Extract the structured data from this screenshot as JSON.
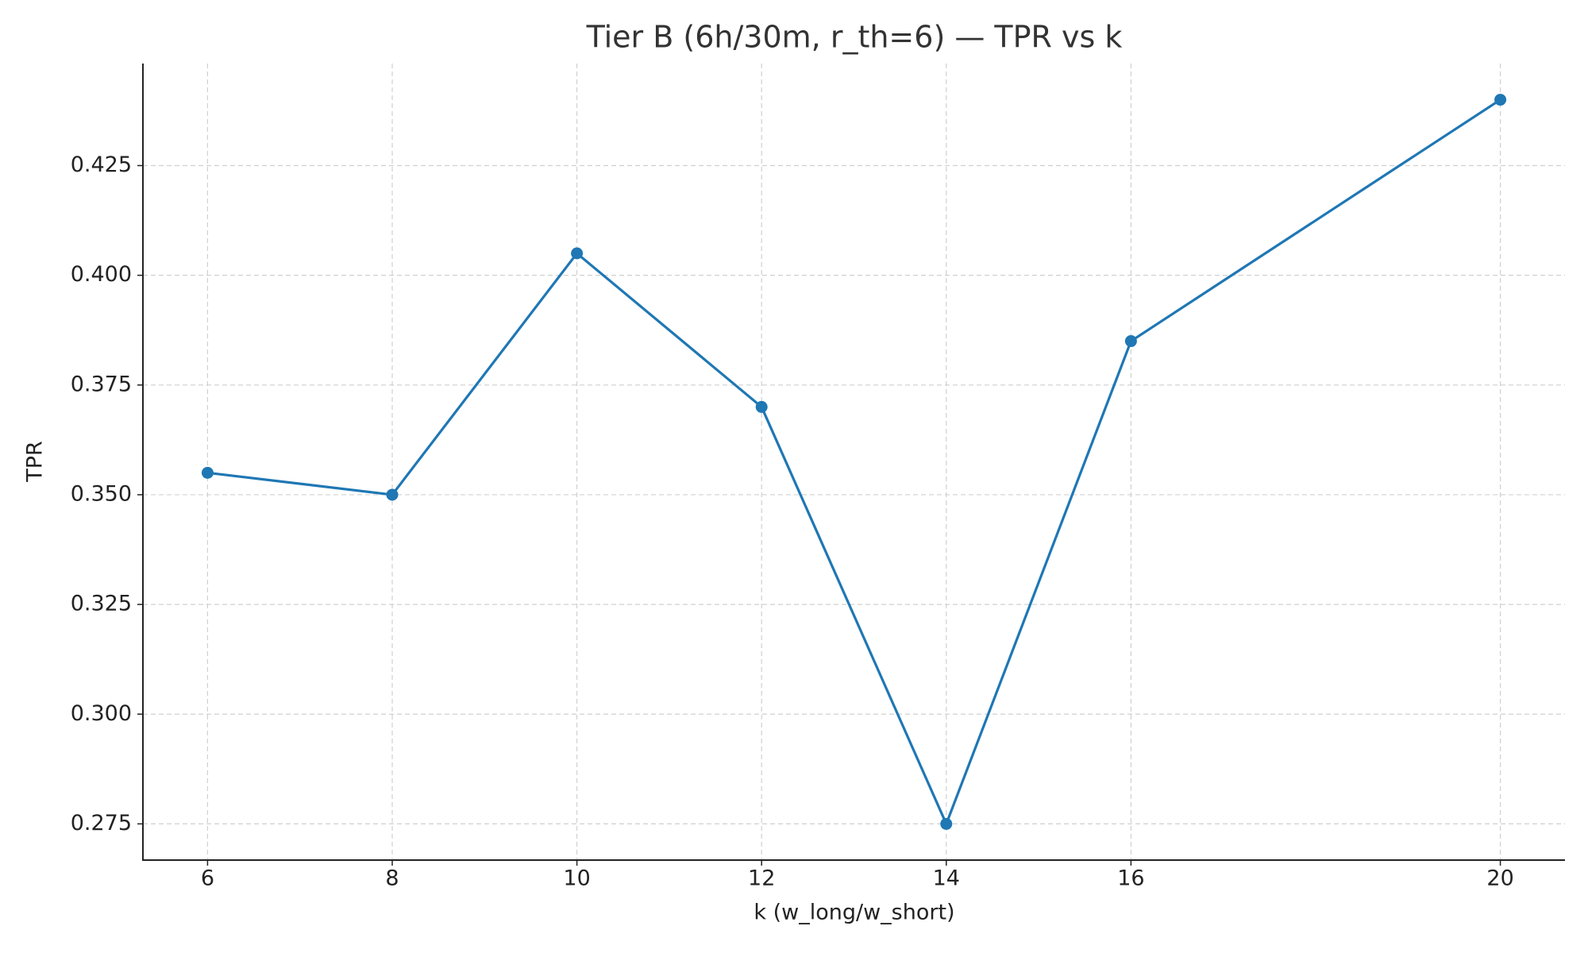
{
  "chart_data": {
    "type": "line",
    "title": "Tier B (6h/30m, r_th=6) — TPR vs k",
    "x_label": "k (w_long/w_short)",
    "y_label": "TPR",
    "x": [
      6,
      8,
      10,
      12,
      14,
      16,
      20
    ],
    "series": [
      {
        "name": "TPR",
        "color": "#1f77b4",
        "values": [
          0.355,
          0.35,
          0.405,
          0.37,
          0.275,
          0.385,
          0.44
        ]
      }
    ],
    "xlim": [
      5.3,
      20.7
    ],
    "xticks": [
      6,
      8,
      10,
      12,
      14,
      16,
      20
    ],
    "ylim": [
      0.26675,
      0.44825
    ],
    "yticks": [
      0.275,
      {
        "value": 0.3,
        "label": "0.300"
      },
      0.325,
      {
        "value": 0.35,
        "label": "0.350"
      },
      0.375,
      {
        "value": 0.4,
        "label": "0.400"
      },
      0.425
    ],
    "grid": true
  }
}
